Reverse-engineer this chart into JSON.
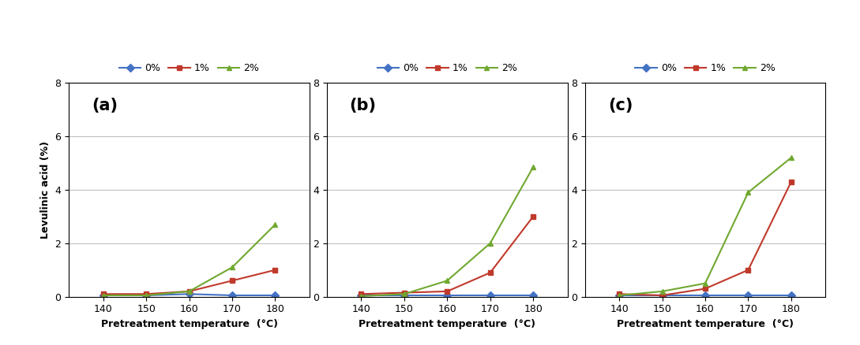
{
  "x": [
    140,
    150,
    160,
    170,
    180
  ],
  "subplots": [
    {
      "label": "(a)",
      "series": {
        "0%": [
          0.05,
          0.05,
          0.1,
          0.05,
          0.05
        ],
        "1%": [
          0.1,
          0.1,
          0.2,
          0.6,
          1.0
        ],
        "2%": [
          0.05,
          0.05,
          0.2,
          1.1,
          2.7
        ]
      }
    },
    {
      "label": "(b)",
      "series": {
        "0%": [
          0.05,
          0.05,
          0.05,
          0.05,
          0.05
        ],
        "1%": [
          0.1,
          0.15,
          0.2,
          0.9,
          3.0
        ],
        "2%": [
          0.02,
          0.1,
          0.6,
          2.0,
          4.85
        ]
      }
    },
    {
      "label": "(c)",
      "series": {
        "0%": [
          0.05,
          0.05,
          0.05,
          0.05,
          0.05
        ],
        "1%": [
          0.1,
          0.05,
          0.3,
          1.0,
          4.3
        ],
        "2%": [
          0.05,
          0.2,
          0.5,
          3.9,
          5.2
        ]
      }
    }
  ],
  "ylim": [
    0,
    8
  ],
  "yticks": [
    0,
    2,
    4,
    6,
    8
  ],
  "xlabel": "Pretreatment temperature  (°C)",
  "ylabel": "Levulinic acid (%)",
  "colors": {
    "0%": "#4472C4",
    "1%": "#C0392B",
    "2%": "#70A830"
  },
  "markers": {
    "0%": "D",
    "1%": "s",
    "2%": "^"
  },
  "legend_labels": [
    "0%",
    "1%",
    "2%"
  ],
  "bg_color": "#FFFFFF",
  "grid_color": "#C0C0C0"
}
